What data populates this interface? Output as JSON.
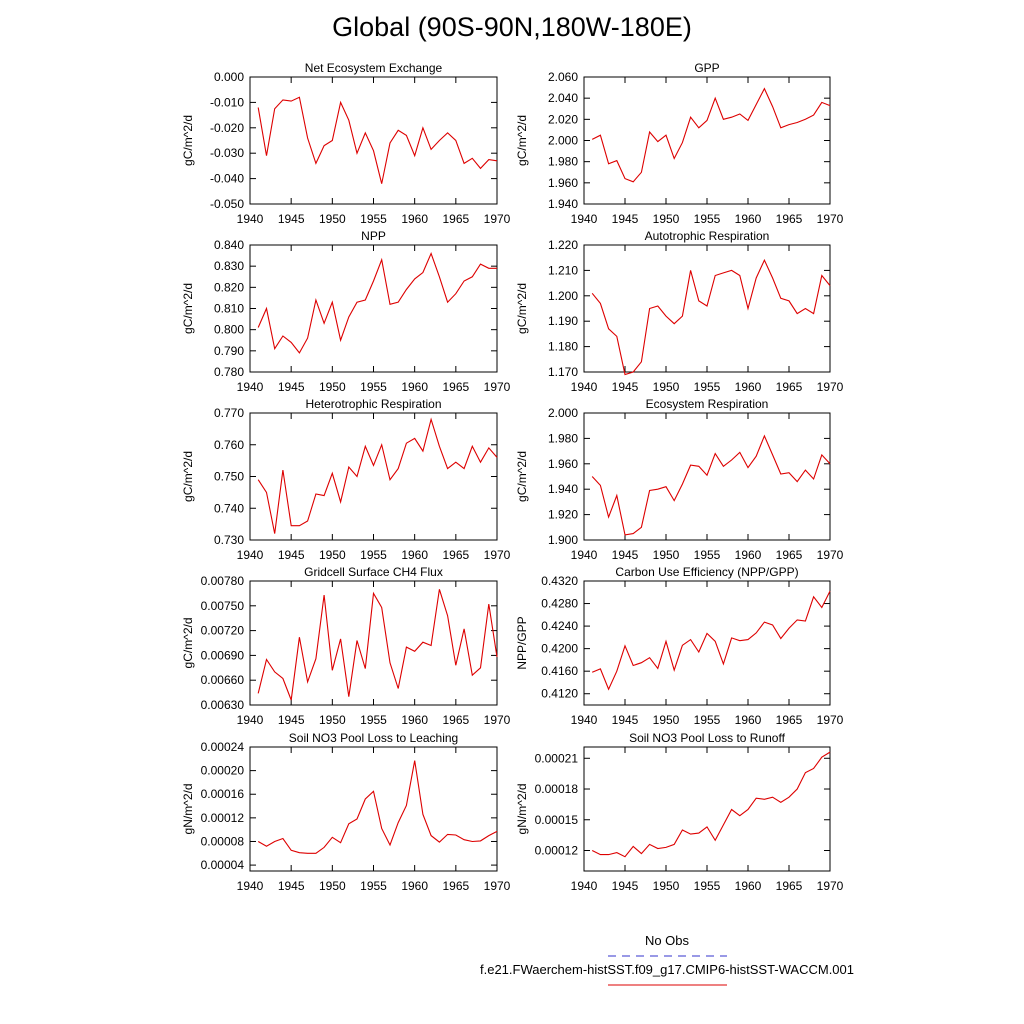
{
  "figure": {
    "title": "Global (90S-90N,180W-180E)",
    "legend": {
      "entries": [
        {
          "label": "No Obs",
          "color": "#3333cc",
          "dash": true
        },
        {
          "label": "f.e21.FWaerchem-histSST.f09_g17.CMIP6-histSST-WACCM.001",
          "color": "#dd0000",
          "dash": false
        }
      ]
    }
  },
  "chart_data": [
    {
      "type": "line",
      "title": "Net Ecosystem Exchange",
      "ylabel": "gC/m^2/d",
      "xlim": [
        1940,
        1970
      ],
      "ylim": [
        -0.05,
        0.0
      ],
      "yticks": [
        "0.000",
        "-0.010",
        "-0.020",
        "-0.030",
        "-0.040",
        "-0.050"
      ],
      "ytick_values": [
        0.0,
        -0.01,
        -0.02,
        -0.03,
        -0.04,
        -0.05
      ],
      "xticks": [
        "1940",
        "1945",
        "1950",
        "1955",
        "1960",
        "1965",
        "1970"
      ],
      "xtick_values": [
        1940,
        1945,
        1950,
        1955,
        1960,
        1965,
        1970
      ],
      "x": [
        1941,
        1942,
        1943,
        1944,
        1945,
        1946,
        1947,
        1948,
        1949,
        1950,
        1951,
        1952,
        1953,
        1954,
        1955,
        1956,
        1957,
        1958,
        1959,
        1960,
        1961,
        1962,
        1963,
        1964,
        1965,
        1966,
        1967,
        1968,
        1969,
        1970
      ],
      "series": [
        {
          "color": "#dd0000",
          "values": [
            -0.012,
            -0.031,
            -0.0125,
            -0.009,
            -0.0095,
            -0.008,
            -0.024,
            -0.034,
            -0.027,
            -0.025,
            -0.01,
            -0.017,
            -0.03,
            -0.022,
            -0.029,
            -0.042,
            -0.026,
            -0.021,
            -0.023,
            -0.031,
            -0.02,
            -0.0285,
            -0.025,
            -0.022,
            -0.025,
            -0.034,
            -0.032,
            -0.036,
            -0.0325,
            -0.033
          ]
        }
      ]
    },
    {
      "type": "line",
      "title": "GPP",
      "ylabel": "gC/m^2/d",
      "xlim": [
        1940,
        1970
      ],
      "ylim": [
        1.94,
        2.06
      ],
      "yticks": [
        "2.060",
        "2.040",
        "2.020",
        "2.000",
        "1.980",
        "1.960",
        "1.940"
      ],
      "ytick_values": [
        2.06,
        2.04,
        2.02,
        2.0,
        1.98,
        1.96,
        1.94
      ],
      "xticks": [
        "1940",
        "1945",
        "1950",
        "1955",
        "1960",
        "1965",
        "1970"
      ],
      "xtick_values": [
        1940,
        1945,
        1950,
        1955,
        1960,
        1965,
        1970
      ],
      "x": [
        1941,
        1942,
        1943,
        1944,
        1945,
        1946,
        1947,
        1948,
        1949,
        1950,
        1951,
        1952,
        1953,
        1954,
        1955,
        1956,
        1957,
        1958,
        1959,
        1960,
        1961,
        1962,
        1963,
        1964,
        1965,
        1966,
        1967,
        1968,
        1969,
        1970
      ],
      "series": [
        {
          "color": "#dd0000",
          "values": [
            2.001,
            2.005,
            1.978,
            1.981,
            1.964,
            1.961,
            1.97,
            2.008,
            1.999,
            2.005,
            1.983,
            1.998,
            2.022,
            2.012,
            2.019,
            2.04,
            2.02,
            2.022,
            2.025,
            2.019,
            2.034,
            2.049,
            2.032,
            2.012,
            2.015,
            2.017,
            2.02,
            2.024,
            2.036,
            2.033
          ]
        }
      ]
    },
    {
      "type": "line",
      "title": "NPP",
      "ylabel": "gC/m^2/d",
      "xlim": [
        1940,
        1970
      ],
      "ylim": [
        0.78,
        0.84
      ],
      "yticks": [
        "0.840",
        "0.830",
        "0.820",
        "0.810",
        "0.800",
        "0.790",
        "0.780"
      ],
      "ytick_values": [
        0.84,
        0.83,
        0.82,
        0.81,
        0.8,
        0.79,
        0.78
      ],
      "xticks": [
        "1940",
        "1945",
        "1950",
        "1955",
        "1960",
        "1965",
        "1970"
      ],
      "xtick_values": [
        1940,
        1945,
        1950,
        1955,
        1960,
        1965,
        1970
      ],
      "x": [
        1941,
        1942,
        1943,
        1944,
        1945,
        1946,
        1947,
        1948,
        1949,
        1950,
        1951,
        1952,
        1953,
        1954,
        1955,
        1956,
        1957,
        1958,
        1959,
        1960,
        1961,
        1962,
        1963,
        1964,
        1965,
        1966,
        1967,
        1968,
        1969,
        1970
      ],
      "series": [
        {
          "color": "#dd0000",
          "values": [
            0.801,
            0.81,
            0.791,
            0.797,
            0.794,
            0.789,
            0.796,
            0.814,
            0.803,
            0.813,
            0.795,
            0.806,
            0.813,
            0.814,
            0.823,
            0.833,
            0.812,
            0.813,
            0.819,
            0.824,
            0.827,
            0.836,
            0.825,
            0.813,
            0.817,
            0.823,
            0.825,
            0.831,
            0.829,
            0.829
          ]
        }
      ]
    },
    {
      "type": "line",
      "title": "Autotrophic Respiration",
      "ylabel": "gC/m^2/d",
      "xlim": [
        1940,
        1970
      ],
      "ylim": [
        1.17,
        1.22
      ],
      "yticks": [
        "1.220",
        "1.210",
        "1.200",
        "1.190",
        "1.180",
        "1.170"
      ],
      "ytick_values": [
        1.22,
        1.21,
        1.2,
        1.19,
        1.18,
        1.17
      ],
      "xticks": [
        "1940",
        "1945",
        "1950",
        "1955",
        "1960",
        "1965",
        "1970"
      ],
      "xtick_values": [
        1940,
        1945,
        1950,
        1955,
        1960,
        1965,
        1970
      ],
      "x": [
        1941,
        1942,
        1943,
        1944,
        1945,
        1946,
        1947,
        1948,
        1949,
        1950,
        1951,
        1952,
        1953,
        1954,
        1955,
        1956,
        1957,
        1958,
        1959,
        1960,
        1961,
        1962,
        1963,
        1964,
        1965,
        1966,
        1967,
        1968,
        1969,
        1970
      ],
      "series": [
        {
          "color": "#dd0000",
          "values": [
            1.201,
            1.197,
            1.187,
            1.184,
            1.169,
            1.17,
            1.174,
            1.195,
            1.196,
            1.192,
            1.189,
            1.192,
            1.21,
            1.198,
            1.196,
            1.208,
            1.209,
            1.21,
            1.208,
            1.195,
            1.207,
            1.214,
            1.207,
            1.199,
            1.198,
            1.193,
            1.195,
            1.193,
            1.208,
            1.204
          ]
        }
      ]
    },
    {
      "type": "line",
      "title": "Heterotrophic Respiration",
      "ylabel": "gC/m^2/d",
      "xlim": [
        1940,
        1970
      ],
      "ylim": [
        0.73,
        0.77
      ],
      "yticks": [
        "0.770",
        "0.760",
        "0.750",
        "0.740",
        "0.730"
      ],
      "ytick_values": [
        0.77,
        0.76,
        0.75,
        0.74,
        0.73
      ],
      "xticks": [
        "1940",
        "1945",
        "1950",
        "1955",
        "1960",
        "1965",
        "1970"
      ],
      "xtick_values": [
        1940,
        1945,
        1950,
        1955,
        1960,
        1965,
        1970
      ],
      "x": [
        1941,
        1942,
        1943,
        1944,
        1945,
        1946,
        1947,
        1948,
        1949,
        1950,
        1951,
        1952,
        1953,
        1954,
        1955,
        1956,
        1957,
        1958,
        1959,
        1960,
        1961,
        1962,
        1963,
        1964,
        1965,
        1966,
        1967,
        1968,
        1969,
        1970
      ],
      "series": [
        {
          "color": "#dd0000",
          "values": [
            0.749,
            0.745,
            0.732,
            0.752,
            0.7345,
            0.7345,
            0.736,
            0.7445,
            0.744,
            0.751,
            0.742,
            0.753,
            0.75,
            0.7595,
            0.7535,
            0.76,
            0.749,
            0.7525,
            0.7605,
            0.762,
            0.758,
            0.768,
            0.7595,
            0.7525,
            0.7545,
            0.7525,
            0.7595,
            0.7545,
            0.759,
            0.756
          ]
        }
      ]
    },
    {
      "type": "line",
      "title": "Ecosystem Respiration",
      "ylabel": "gC/m^2/d",
      "xlim": [
        1940,
        1970
      ],
      "ylim": [
        1.9,
        2.0
      ],
      "yticks": [
        "2.000",
        "1.980",
        "1.960",
        "1.940",
        "1.920",
        "1.900"
      ],
      "ytick_values": [
        2.0,
        1.98,
        1.96,
        1.94,
        1.92,
        1.9
      ],
      "xticks": [
        "1940",
        "1945",
        "1950",
        "1955",
        "1960",
        "1965",
        "1970"
      ],
      "xtick_values": [
        1940,
        1945,
        1950,
        1955,
        1960,
        1965,
        1970
      ],
      "x": [
        1941,
        1942,
        1943,
        1944,
        1945,
        1946,
        1947,
        1948,
        1949,
        1950,
        1951,
        1952,
        1953,
        1954,
        1955,
        1956,
        1957,
        1958,
        1959,
        1960,
        1961,
        1962,
        1963,
        1964,
        1965,
        1966,
        1967,
        1968,
        1969,
        1970
      ],
      "series": [
        {
          "color": "#dd0000",
          "values": [
            1.95,
            1.943,
            1.918,
            1.935,
            1.904,
            1.905,
            1.91,
            1.939,
            1.94,
            1.942,
            1.931,
            1.944,
            1.959,
            1.958,
            1.951,
            1.968,
            1.958,
            1.963,
            1.969,
            1.957,
            1.966,
            1.982,
            1.967,
            1.952,
            1.953,
            1.946,
            1.955,
            1.948,
            1.967,
            1.96
          ]
        }
      ]
    },
    {
      "type": "line",
      "title": "Gridcell Surface CH4 Flux",
      "ylabel": "gC/m^2/d",
      "xlim": [
        1940,
        1970
      ],
      "ylim": [
        0.0063,
        0.0078
      ],
      "yticks": [
        "0.00780",
        "0.00750",
        "0.00720",
        "0.00690",
        "0.00660",
        "0.00630"
      ],
      "ytick_values": [
        0.0078,
        0.0075,
        0.0072,
        0.0069,
        0.0066,
        0.0063
      ],
      "xticks": [
        "1940",
        "1945",
        "1950",
        "1955",
        "1960",
        "1965",
        "1970"
      ],
      "xtick_values": [
        1940,
        1945,
        1950,
        1955,
        1960,
        1965,
        1970
      ],
      "x": [
        1941,
        1942,
        1943,
        1944,
        1945,
        1946,
        1947,
        1948,
        1949,
        1950,
        1951,
        1952,
        1953,
        1954,
        1955,
        1956,
        1957,
        1958,
        1959,
        1960,
        1961,
        1962,
        1963,
        1964,
        1965,
        1966,
        1967,
        1968,
        1969,
        1970
      ],
      "series": [
        {
          "color": "#dd0000",
          "values": [
            0.00644,
            0.00685,
            0.0067,
            0.00662,
            0.00636,
            0.00712,
            0.00658,
            0.00686,
            0.00763,
            0.00672,
            0.0071,
            0.0064,
            0.00708,
            0.00674,
            0.00765,
            0.00748,
            0.00681,
            0.0065,
            0.007,
            0.00695,
            0.00706,
            0.00702,
            0.0077,
            0.00738,
            0.00678,
            0.00722,
            0.00666,
            0.00675,
            0.00752,
            0.00688
          ]
        }
      ]
    },
    {
      "type": "line",
      "title": "Carbon Use Efficiency (NPP/GPP)",
      "ylabel": "NPP/GPP",
      "xlim": [
        1940,
        1970
      ],
      "ylim": [
        0.41,
        0.432
      ],
      "yticks": [
        "0.4320",
        "0.4280",
        "0.4240",
        "0.4200",
        "0.4160",
        "0.4120"
      ],
      "ytick_values": [
        0.432,
        0.428,
        0.424,
        0.42,
        0.416,
        0.412
      ],
      "xticks": [
        "1940",
        "1945",
        "1950",
        "1955",
        "1960",
        "1965",
        "1970"
      ],
      "xtick_values": [
        1940,
        1945,
        1950,
        1955,
        1960,
        1965,
        1970
      ],
      "x": [
        1941,
        1942,
        1943,
        1944,
        1945,
        1946,
        1947,
        1948,
        1949,
        1950,
        1951,
        1952,
        1953,
        1954,
        1955,
        1956,
        1957,
        1958,
        1959,
        1960,
        1961,
        1962,
        1963,
        1964,
        1965,
        1966,
        1967,
        1968,
        1969,
        1970
      ],
      "series": [
        {
          "color": "#dd0000",
          "values": [
            0.4158,
            0.4164,
            0.4128,
            0.416,
            0.4205,
            0.417,
            0.4175,
            0.4184,
            0.4165,
            0.4213,
            0.4162,
            0.4206,
            0.4216,
            0.4194,
            0.4227,
            0.4213,
            0.4173,
            0.4219,
            0.4214,
            0.4216,
            0.4228,
            0.4247,
            0.4242,
            0.4218,
            0.4236,
            0.4251,
            0.4249,
            0.4292,
            0.4273,
            0.4302
          ]
        }
      ]
    },
    {
      "type": "line",
      "title": "Soil NO3 Pool Loss to Leaching",
      "ylabel": "gN/m^2/d",
      "xlim": [
        1940,
        1970
      ],
      "ylim": [
        3e-05,
        0.00024
      ],
      "yticks": [
        "0.00024",
        "0.00020",
        "0.00016",
        "0.00012",
        "0.00008",
        "0.00004"
      ],
      "ytick_values": [
        0.00024,
        0.0002,
        0.00016,
        0.00012,
        8e-05,
        4e-05
      ],
      "xticks": [
        "1940",
        "1945",
        "1950",
        "1955",
        "1960",
        "1965",
        "1970"
      ],
      "xtick_values": [
        1940,
        1945,
        1950,
        1955,
        1960,
        1965,
        1970
      ],
      "x": [
        1941,
        1942,
        1943,
        1944,
        1945,
        1946,
        1947,
        1948,
        1949,
        1950,
        1951,
        1952,
        1953,
        1954,
        1955,
        1956,
        1957,
        1958,
        1959,
        1960,
        1961,
        1962,
        1963,
        1964,
        1965,
        1966,
        1967,
        1968,
        1969,
        1970
      ],
      "series": [
        {
          "color": "#dd0000",
          "values": [
            8e-05,
            7.2e-05,
            8e-05,
            8.5e-05,
            6.5e-05,
            6.1e-05,
            6e-05,
            6e-05,
            7e-05,
            8.7e-05,
            7.8e-05,
            0.00011,
            0.000118,
            0.000152,
            0.000165,
            0.000102,
            7.4e-05,
            0.000112,
            0.000141,
            0.000217,
            0.000126,
            9e-05,
            7.9e-05,
            9.2e-05,
            9.1e-05,
            8.3e-05,
            8e-05,
            8.1e-05,
            9e-05,
            9.7e-05
          ]
        }
      ]
    },
    {
      "type": "line",
      "title": "Soil NO3 Pool Loss to Runoff",
      "ylabel": "gN/m^2/d",
      "xlim": [
        1940,
        1970
      ],
      "ylim": [
        0.0001,
        0.000221
      ],
      "yticks": [
        "0.00021",
        "0.00018",
        "0.00015",
        "0.00012"
      ],
      "ytick_values": [
        0.00021,
        0.00018,
        0.00015,
        0.00012
      ],
      "xticks": [
        "1940",
        "1945",
        "1950",
        "1955",
        "1960",
        "1965",
        "1970"
      ],
      "xtick_values": [
        1940,
        1945,
        1950,
        1955,
        1960,
        1965,
        1970
      ],
      "x": [
        1941,
        1942,
        1943,
        1944,
        1945,
        1946,
        1947,
        1948,
        1949,
        1950,
        1951,
        1952,
        1953,
        1954,
        1955,
        1956,
        1957,
        1958,
        1959,
        1960,
        1961,
        1962,
        1963,
        1964,
        1965,
        1966,
        1967,
        1968,
        1969,
        1970
      ],
      "series": [
        {
          "color": "#dd0000",
          "values": [
            0.00012,
            0.000116,
            0.000116,
            0.000118,
            0.000114,
            0.000124,
            0.000117,
            0.000126,
            0.000122,
            0.000123,
            0.000126,
            0.00014,
            0.000136,
            0.000137,
            0.000143,
            0.00013,
            0.000145,
            0.00016,
            0.000154,
            0.00016,
            0.000171,
            0.00017,
            0.000172,
            0.000167,
            0.000172,
            0.00018,
            0.000196,
            0.0002,
            0.000211,
            0.000216
          ]
        }
      ]
    }
  ]
}
